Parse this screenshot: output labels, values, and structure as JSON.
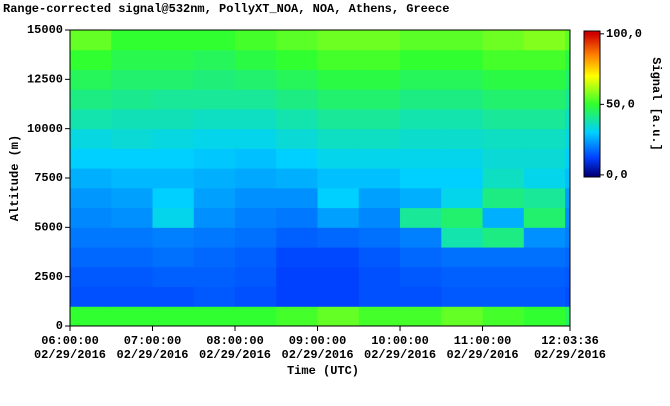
{
  "chart_data": {
    "type": "heatmap",
    "title": "Range-corrected signal@532nm, PollyXT_NOA, NOA, Athens, Greece",
    "x_label": "Time (UTC)",
    "y_label": "Altitude (m)",
    "colorbar_label": "Signal [a.u.]",
    "xlim": [
      "2016-02-29T06:00:00",
      "2016-02-29T12:03:36"
    ],
    "xticks": [
      {
        "value": "2016-02-29T06:00:00",
        "label": [
          "06:00:00",
          "02/29/2016"
        ]
      },
      {
        "value": "2016-02-29T07:00:00",
        "label": [
          "07:00:00",
          "02/29/2016"
        ]
      },
      {
        "value": "2016-02-29T08:00:00",
        "label": [
          "08:00:00",
          "02/29/2016"
        ]
      },
      {
        "value": "2016-02-29T09:00:00",
        "label": [
          "09:00:00",
          "02/29/2016"
        ]
      },
      {
        "value": "2016-02-29T10:00:00",
        "label": [
          "10:00:00",
          "02/29/2016"
        ]
      },
      {
        "value": "2016-02-29T11:00:00",
        "label": [
          "11:00:00",
          "02/29/2016"
        ]
      },
      {
        "value": "2016-02-29T12:03:36",
        "label": [
          "12:03:36",
          "02/29/2016"
        ]
      }
    ],
    "ylim": [
      0,
      15000
    ],
    "yticks": [
      0,
      2500,
      5000,
      7500,
      10000,
      12500,
      15000
    ],
    "zlim": [
      -1.5,
      102
    ],
    "zticks": [
      {
        "value": 0,
        "label": "0,0"
      },
      {
        "value": 50,
        "label": "50,0"
      },
      {
        "value": 100,
        "label": "100,0"
      }
    ],
    "colorscale": [
      [
        0,
        "#00007f"
      ],
      [
        12,
        "#0040ff"
      ],
      [
        30,
        "#00d0ff"
      ],
      [
        50,
        "#30ff30"
      ],
      [
        70,
        "#ffff00"
      ],
      [
        85,
        "#ff8000"
      ],
      [
        100,
        "#d00000"
      ]
    ],
    "x": [
      "2016-02-29T06:00:00",
      "2016-02-29T06:30:00",
      "2016-02-29T07:00:00",
      "2016-02-29T07:30:00",
      "2016-02-29T08:00:00",
      "2016-02-29T08:30:00",
      "2016-02-29T09:00:00",
      "2016-02-29T09:30:00",
      "2016-02-29T10:00:00",
      "2016-02-29T10:30:00",
      "2016-02-29T11:00:00",
      "2016-02-29T11:30:00",
      "2016-02-29T12:00:00"
    ],
    "y": [
      0,
      1000,
      2000,
      3000,
      4000,
      5000,
      6000,
      7000,
      8000,
      9000,
      10000,
      11000,
      12000,
      13000,
      14000
    ],
    "z": [
      [
        50,
        50,
        50,
        50,
        50,
        52,
        55,
        52,
        52,
        55,
        52,
        50,
        45
      ],
      [
        14,
        14,
        14,
        15,
        14,
        12,
        12,
        14,
        14,
        15,
        15,
        15,
        14
      ],
      [
        15,
        15,
        16,
        16,
        15,
        12,
        12,
        14,
        15,
        16,
        16,
        16,
        15
      ],
      [
        17,
        17,
        18,
        17,
        16,
        13,
        13,
        15,
        17,
        18,
        18,
        18,
        17
      ],
      [
        19,
        19,
        20,
        19,
        18,
        16,
        17,
        18,
        20,
        38,
        42,
        22,
        20
      ],
      [
        21,
        22,
        32,
        22,
        20,
        19,
        24,
        21,
        40,
        44,
        26,
        44,
        22
      ],
      [
        23,
        24,
        30,
        24,
        22,
        22,
        30,
        24,
        26,
        32,
        42,
        40,
        24
      ],
      [
        26,
        27,
        27,
        26,
        25,
        26,
        28,
        28,
        30,
        30,
        36,
        32,
        28
      ],
      [
        30,
        30,
        30,
        29,
        28,
        30,
        32,
        32,
        32,
        32,
        34,
        34,
        30
      ],
      [
        33,
        34,
        33,
        32,
        32,
        34,
        36,
        36,
        35,
        35,
        36,
        36,
        33
      ],
      [
        38,
        37,
        37,
        36,
        36,
        38,
        40,
        40,
        38,
        38,
        40,
        40,
        36
      ],
      [
        42,
        41,
        40,
        40,
        40,
        42,
        44,
        44,
        42,
        42,
        44,
        44,
        40
      ],
      [
        46,
        44,
        44,
        43,
        44,
        46,
        48,
        48,
        46,
        46,
        48,
        48,
        44
      ],
      [
        50,
        47,
        47,
        46,
        48,
        50,
        52,
        52,
        50,
        50,
        52,
        52,
        48
      ],
      [
        55,
        50,
        50,
        50,
        52,
        54,
        56,
        56,
        54,
        54,
        56,
        58,
        54
      ]
    ]
  }
}
